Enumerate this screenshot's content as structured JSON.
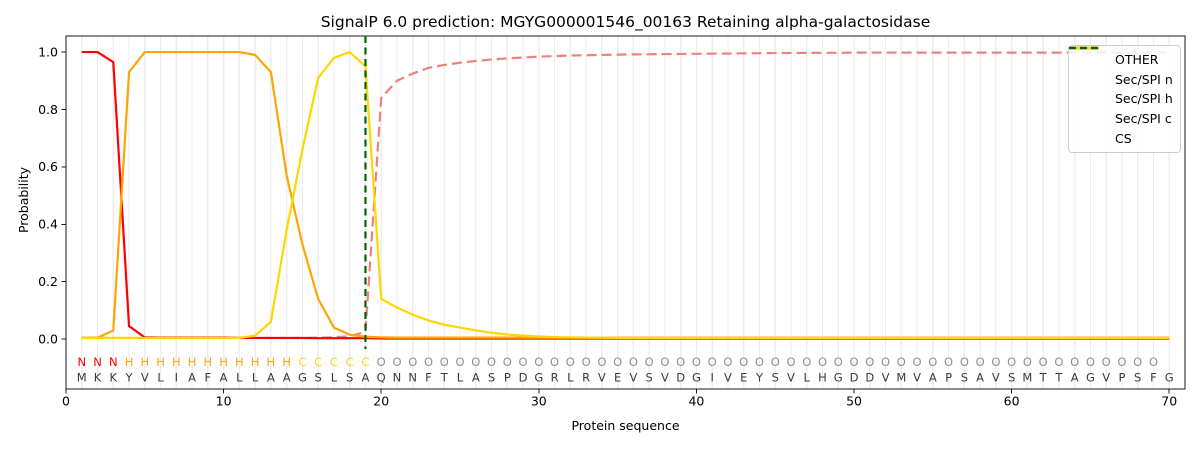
{
  "chart_data": {
    "type": "line",
    "title": "SignalP 6.0 prediction: MGYG000001546_00163 Retaining alpha-galactosidase",
    "xlabel": "Protein sequence",
    "ylabel": "Probability",
    "xlim": [
      0,
      71
    ],
    "ylim": [
      -0.174,
      1.056
    ],
    "xticks": [
      0,
      10,
      20,
      30,
      40,
      50,
      60,
      70
    ],
    "yticks": [
      0.0,
      0.2,
      0.4,
      0.6,
      0.8,
      1.0
    ],
    "grid": "light vertical gridline at every residue position 1-70",
    "legend_position": "upper right",
    "x": [
      1,
      2,
      3,
      4,
      5,
      6,
      7,
      8,
      9,
      10,
      11,
      12,
      13,
      14,
      15,
      16,
      17,
      18,
      19,
      20,
      21,
      22,
      23,
      24,
      25,
      26,
      27,
      28,
      29,
      30,
      31,
      32,
      33,
      34,
      35,
      36,
      37,
      38,
      39,
      40,
      41,
      42,
      43,
      44,
      45,
      46,
      47,
      48,
      49,
      50,
      51,
      52,
      53,
      54,
      55,
      56,
      57,
      58,
      59,
      60,
      61,
      62,
      63,
      64,
      65,
      66,
      67,
      68,
      69,
      70
    ],
    "series": [
      {
        "name": "OTHER",
        "color": "#f08080",
        "style": "dashed",
        "values": [
          0.005,
          0.005,
          0.004,
          0.004,
          0.004,
          0.004,
          0.004,
          0.004,
          0.004,
          0.004,
          0.004,
          0.004,
          0.004,
          0.004,
          0.004,
          0.005,
          0.006,
          0.01,
          0.025,
          0.84,
          0.9,
          0.925,
          0.945,
          0.955,
          0.963,
          0.969,
          0.974,
          0.978,
          0.981,
          0.984,
          0.986,
          0.988,
          0.989,
          0.99,
          0.991,
          0.992,
          0.9925,
          0.993,
          0.9935,
          0.994,
          0.9945,
          0.995,
          0.9955,
          0.996,
          0.9965,
          0.997,
          0.997,
          0.9975,
          0.9975,
          0.998,
          0.998,
          0.998,
          0.998,
          0.998,
          0.998,
          0.998,
          0.998,
          0.998,
          0.998,
          0.998,
          0.998,
          0.998,
          0.998,
          0.998,
          0.998,
          0.998,
          0.998,
          0.998,
          0.998,
          0.998
        ]
      },
      {
        "name": "Sec/SPI n",
        "color": "#ff0000",
        "style": "solid",
        "values": [
          1.0,
          1.0,
          0.965,
          0.045,
          0.006,
          0.005,
          0.005,
          0.005,
          0.005,
          0.005,
          0.004,
          0.004,
          0.004,
          0.004,
          0.004,
          0.003,
          0.003,
          0.003,
          0.003,
          0.002,
          0.002,
          0.002,
          0.002,
          0.002,
          0.002,
          0.002,
          0.002,
          0.002,
          0.002,
          0.002,
          0.002,
          0.002,
          0.002,
          0.002,
          0.002,
          0.002,
          0.002,
          0.002,
          0.002,
          0.002,
          0.002,
          0.002,
          0.002,
          0.002,
          0.002,
          0.002,
          0.002,
          0.002,
          0.002,
          0.002,
          0.002,
          0.002,
          0.002,
          0.002,
          0.002,
          0.002,
          0.002,
          0.002,
          0.002,
          0.002,
          0.002,
          0.002,
          0.002,
          0.002,
          0.002,
          0.002,
          0.002,
          0.002,
          0.002,
          0.002
        ]
      },
      {
        "name": "Sec/SPI h",
        "color": "#ffa500",
        "style": "solid",
        "values": [
          0.005,
          0.005,
          0.03,
          0.93,
          1.0,
          1.0,
          1.0,
          1.0,
          1.0,
          1.0,
          1.0,
          0.99,
          0.93,
          0.57,
          0.33,
          0.14,
          0.04,
          0.015,
          0.008,
          0.006,
          0.005,
          0.005,
          0.005,
          0.005,
          0.005,
          0.005,
          0.005,
          0.005,
          0.005,
          0.005,
          0.005,
          0.005,
          0.005,
          0.005,
          0.005,
          0.005,
          0.005,
          0.005,
          0.005,
          0.005,
          0.005,
          0.005,
          0.005,
          0.005,
          0.005,
          0.005,
          0.005,
          0.005,
          0.005,
          0.005,
          0.005,
          0.005,
          0.005,
          0.005,
          0.005,
          0.005,
          0.005,
          0.005,
          0.005,
          0.005,
          0.005,
          0.005,
          0.005,
          0.005,
          0.005,
          0.005,
          0.005,
          0.005,
          0.005,
          0.005
        ]
      },
      {
        "name": "Sec/SPI c",
        "color": "#ffd700",
        "style": "solid",
        "values": [
          0.004,
          0.004,
          0.004,
          0.004,
          0.004,
          0.004,
          0.004,
          0.004,
          0.004,
          0.004,
          0.004,
          0.012,
          0.06,
          0.38,
          0.66,
          0.91,
          0.98,
          1.0,
          0.95,
          0.14,
          0.11,
          0.085,
          0.065,
          0.05,
          0.04,
          0.03,
          0.022,
          0.016,
          0.012,
          0.009,
          0.007,
          0.006,
          0.005,
          0.005,
          0.004,
          0.004,
          0.004,
          0.004,
          0.004,
          0.004,
          0.004,
          0.004,
          0.004,
          0.004,
          0.004,
          0.004,
          0.004,
          0.004,
          0.004,
          0.004,
          0.004,
          0.004,
          0.004,
          0.004,
          0.004,
          0.004,
          0.004,
          0.004,
          0.004,
          0.004,
          0.004,
          0.004,
          0.004,
          0.004,
          0.004,
          0.004,
          0.004,
          0.004,
          0.004,
          0.004
        ]
      }
    ],
    "cs_line": {
      "label": "CS",
      "x": 19,
      "color": "#006400",
      "style": "dashed"
    },
    "sequence": "MKKYVLIAFALLAAGSLSAQNNFTLASPDGRLRVEVSVDGIVEYSVLHGDDVMVAPSAVSMTTAGVPSFG",
    "region_labels": "NNNHHHHHHHHHHHCCCCCOOOOOOOOOOOOOOOOOOOOOOOOOOOOOOOOOOOOOOOOOOOOOOOOOO",
    "region_colors": {
      "N": "#ff0000",
      "H": "#ffa500",
      "C": "#ffd700",
      "O": "#8f8f8f"
    },
    "residue_color": "#3a3a3a"
  },
  "legend": {
    "items": [
      {
        "label": "OTHER",
        "color": "#f08080",
        "style": "dashed"
      },
      {
        "label": "Sec/SPI n",
        "color": "#ff0000",
        "style": "solid"
      },
      {
        "label": "Sec/SPI h",
        "color": "#ffa500",
        "style": "solid"
      },
      {
        "label": "Sec/SPI c",
        "color": "#ffd700",
        "style": "solid"
      },
      {
        "label": "CS",
        "color": "#006400",
        "style": "dashed"
      }
    ]
  }
}
